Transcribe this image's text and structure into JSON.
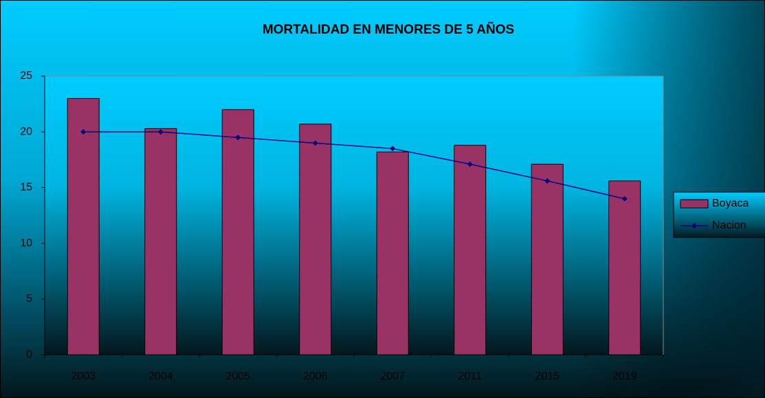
{
  "chart_data": {
    "type": "bar_line",
    "title": "MORTALIDAD EN MENORES DE 5 AÑOS",
    "categories": [
      "2003",
      "2004",
      "2005",
      "2006",
      "2007",
      "2011",
      "2015",
      "2019"
    ],
    "series": [
      {
        "name": "Boyaca",
        "type": "bar",
        "color": "#993366",
        "values": [
          23.0,
          20.3,
          22.0,
          20.7,
          18.2,
          18.8,
          17.1,
          15.6
        ]
      },
      {
        "name": "Nacion",
        "type": "line",
        "color": "#000080",
        "values": [
          20.0,
          20.0,
          19.5,
          19.0,
          18.5,
          17.1,
          15.6,
          14.0
        ]
      }
    ],
    "ylim": [
      0,
      25
    ],
    "yticks": [
      0,
      5,
      10,
      15,
      20,
      25
    ],
    "grid": false,
    "legend": "right"
  }
}
